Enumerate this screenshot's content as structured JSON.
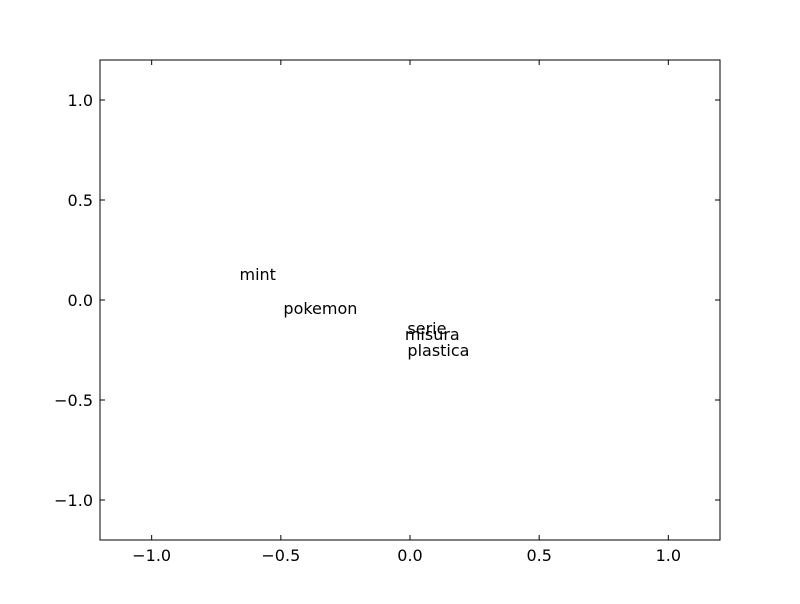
{
  "chart_data": {
    "type": "scatter",
    "title": "",
    "xlabel": "",
    "ylabel": "",
    "xlim": [
      -1.2,
      1.2
    ],
    "ylim": [
      -1.2,
      1.2
    ],
    "grid": false,
    "xticks": [
      -1.0,
      -0.5,
      0.0,
      0.5,
      1.0
    ],
    "yticks": [
      -1.0,
      -0.5,
      0.0,
      0.5,
      1.0
    ],
    "xtick_labels": [
      "−1.0",
      "−0.5",
      "0.0",
      "0.5",
      "1.0"
    ],
    "ytick_labels": [
      "−1.0",
      "−0.5",
      "0.0",
      "0.5",
      "1.0"
    ],
    "points": [
      {
        "label": "mint",
        "x": -0.66,
        "y": 0.1
      },
      {
        "label": "pokemon",
        "x": -0.49,
        "y": -0.07
      },
      {
        "label": "serie",
        "x": -0.01,
        "y": -0.17
      },
      {
        "label": "misura",
        "x": -0.02,
        "y": -0.2
      },
      {
        "label": "plastica",
        "x": -0.01,
        "y": -0.28
      }
    ]
  }
}
